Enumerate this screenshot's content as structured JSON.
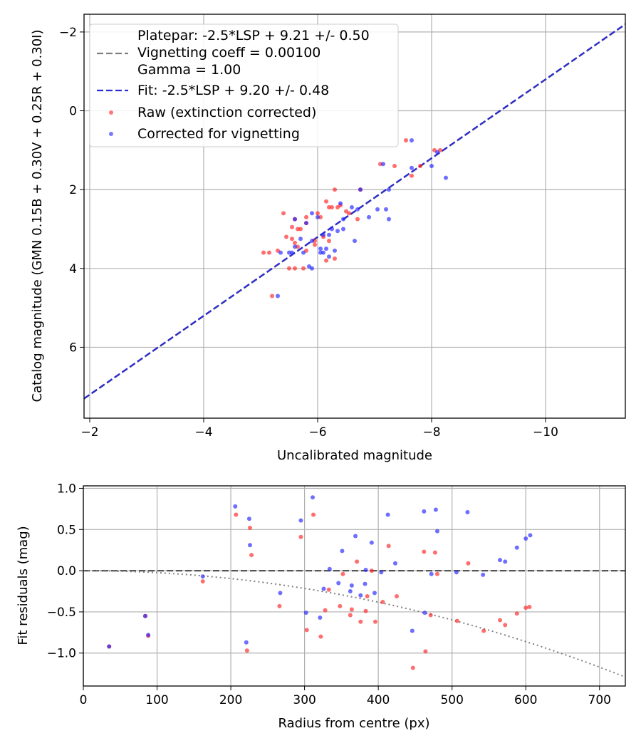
{
  "chart_data": [
    {
      "type": "scatter",
      "xlabel": "Uncalibrated magnitude",
      "ylabel": "Catalog magnitude (GMN 0.15B + 0.30V + 0.25R + 0.30I)",
      "xlim": [
        -1.9,
        -11.4
      ],
      "ylim": [
        7.8,
        -2.45
      ],
      "x_ticks": [
        -2,
        -4,
        -6,
        -8,
        -10
      ],
      "y_ticks": [
        -2,
        0,
        2,
        4,
        6
      ],
      "x_tick_labels": [
        "−2",
        "−4",
        "−6",
        "−8",
        "−10"
      ],
      "y_tick_labels": [
        "−2",
        "0",
        "2",
        "4",
        "6"
      ],
      "grid": true,
      "legend_position": "top-left",
      "legend": {
        "platepar_1": "Platepar: -2.5*LSP + 9.21 +/- 0.50",
        "platepar_2": "Vignetting coeff = 0.00100",
        "platepar_3": "Gamma = 1.00",
        "fit": "Fit: -2.5*LSP + 9.20 +/- 0.48",
        "raw": "Raw (extinction corrected)",
        "corrected": "Corrected for vignetting"
      },
      "lines": [
        {
          "name": "Platepar",
          "slope": 1,
          "intercept": 9.21,
          "color": "#7f7f7f",
          "style": "dashed"
        },
        {
          "name": "Fit",
          "slope": 1,
          "intercept": 9.2,
          "color": "#2a2ad4",
          "style": "dashed"
        }
      ],
      "series": [
        {
          "name": "Raw (extinction corrected)",
          "color": "#ff2020",
          "points": [
            [
              -5.2,
              4.7
            ],
            [
              -5.05,
              3.6
            ],
            [
              -5.15,
              3.6
            ],
            [
              -5.3,
              3.55
            ],
            [
              -5.45,
              3.2
            ],
            [
              -5.4,
              2.6
            ],
            [
              -5.55,
              2.95
            ],
            [
              -5.6,
              2.75
            ],
            [
              -5.65,
              3.0
            ],
            [
              -5.7,
              3.0
            ],
            [
              -5.55,
              3.25
            ],
            [
              -5.6,
              3.35
            ],
            [
              -5.65,
              3.45
            ],
            [
              -5.5,
              4.0
            ],
            [
              -5.6,
              4.0
            ],
            [
              -5.75,
              4.0
            ],
            [
              -5.8,
              3.55
            ],
            [
              -5.8,
              2.7
            ],
            [
              -5.8,
              2.85
            ],
            [
              -5.95,
              3.3
            ],
            [
              -5.95,
              3.4
            ],
            [
              -6.0,
              2.6
            ],
            [
              -6.05,
              2.7
            ],
            [
              -6.1,
              3.2
            ],
            [
              -6.15,
              2.3
            ],
            [
              -6.2,
              3.3
            ],
            [
              -6.2,
              2.45
            ],
            [
              -6.25,
              2.45
            ],
            [
              -6.3,
              2.0
            ],
            [
              -6.35,
              2.45
            ],
            [
              -6.4,
              2.4
            ],
            [
              -6.15,
              3.8
            ],
            [
              -6.3,
              3.75
            ],
            [
              -6.5,
              2.55
            ],
            [
              -6.55,
              2.6
            ],
            [
              -6.7,
              2.75
            ],
            [
              -6.75,
              2.0
            ],
            [
              -7.1,
              1.35
            ],
            [
              -7.35,
              1.4
            ],
            [
              -7.55,
              0.75
            ],
            [
              -7.65,
              1.65
            ],
            [
              -7.8,
              1.4
            ],
            [
              -8.05,
              1.0
            ],
            [
              -8.15,
              1.0
            ]
          ]
        },
        {
          "name": "Corrected for vignetting",
          "color": "#2020ff",
          "points": [
            [
              -5.3,
              4.7
            ],
            [
              -5.35,
              3.6
            ],
            [
              -5.5,
              3.6
            ],
            [
              -5.55,
              3.6
            ],
            [
              -5.6,
              3.45
            ],
            [
              -5.6,
              2.75
            ],
            [
              -5.7,
              3.25
            ],
            [
              -5.75,
              3.6
            ],
            [
              -5.8,
              2.85
            ],
            [
              -5.85,
              3.95
            ],
            [
              -5.9,
              4.0
            ],
            [
              -5.9,
              3.3
            ],
            [
              -5.9,
              2.6
            ],
            [
              -6.0,
              2.7
            ],
            [
              -6.05,
              3.5
            ],
            [
              -6.05,
              3.6
            ],
            [
              -6.1,
              3.15
            ],
            [
              -6.1,
              3.6
            ],
            [
              -6.15,
              3.5
            ],
            [
              -6.2,
              3.15
            ],
            [
              -6.2,
              3.7
            ],
            [
              -6.25,
              3.0
            ],
            [
              -6.3,
              3.55
            ],
            [
              -6.35,
              3.05
            ],
            [
              -6.4,
              2.35
            ],
            [
              -6.45,
              2.75
            ],
            [
              -6.45,
              3.0
            ],
            [
              -6.6,
              2.45
            ],
            [
              -6.65,
              3.3
            ],
            [
              -6.7,
              2.5
            ],
            [
              -6.75,
              2.0
            ],
            [
              -6.9,
              2.7
            ],
            [
              -7.05,
              2.5
            ],
            [
              -7.15,
              1.35
            ],
            [
              -7.2,
              2.5
            ],
            [
              -7.25,
              2.75
            ],
            [
              -7.25,
              2.0
            ],
            [
              -7.65,
              0.75
            ],
            [
              -7.65,
              1.45
            ],
            [
              -8.0,
              1.4
            ],
            [
              -8.1,
              1.05
            ],
            [
              -8.25,
              1.7
            ]
          ]
        }
      ]
    },
    {
      "type": "scatter",
      "xlabel": "Radius from centre (px)",
      "ylabel": "Fit residuals (mag)",
      "xlim": [
        0,
        735
      ],
      "ylim": [
        -1.4,
        1.03
      ],
      "x_ticks": [
        0,
        100,
        200,
        300,
        400,
        500,
        600,
        700
      ],
      "y_ticks": [
        -1.0,
        -0.5,
        0.0,
        0.5,
        1.0
      ],
      "x_tick_labels": [
        "0",
        "100",
        "200",
        "300",
        "400",
        "500",
        "600",
        "700"
      ],
      "y_tick_labels": [
        "−1.0",
        "−0.5",
        "0.0",
        "0.5",
        "1.0"
      ],
      "grid": true,
      "lines": [
        {
          "name": "zero",
          "color": "#555555",
          "style": "dashed",
          "y": 0
        },
        {
          "name": "vignetting",
          "color": "#808080",
          "style": "dotted",
          "a": -2.39e-06
        }
      ],
      "series": [
        {
          "name": "Raw (extinction corrected)",
          "color": "#ff2020",
          "points": [
            [
              35,
              -0.92
            ],
            [
              84,
              -0.55
            ],
            [
              88,
              -0.79
            ],
            [
              162,
              -0.13
            ],
            [
              207,
              0.68
            ],
            [
              222,
              -0.97
            ],
            [
              226,
              0.52
            ],
            [
              228,
              0.19
            ],
            [
              266,
              -0.43
            ],
            [
              295,
              0.41
            ],
            [
              303,
              -0.72
            ],
            [
              312,
              0.68
            ],
            [
              322,
              -0.8
            ],
            [
              328,
              -0.48
            ],
            [
              333,
              -0.23
            ],
            [
              348,
              -0.43
            ],
            [
              352,
              -0.04
            ],
            [
              362,
              -0.54
            ],
            [
              364,
              -0.47
            ],
            [
              371,
              0.11
            ],
            [
              376,
              -0.62
            ],
            [
              383,
              -0.49
            ],
            [
              385,
              -0.31
            ],
            [
              391,
              0.0
            ],
            [
              396,
              -0.62
            ],
            [
              406,
              -0.38
            ],
            [
              414,
              0.3
            ],
            [
              425,
              -0.31
            ],
            [
              447,
              -1.18
            ],
            [
              462,
              0.23
            ],
            [
              464,
              -0.98
            ],
            [
              471,
              -0.54
            ],
            [
              477,
              0.22
            ],
            [
              480,
              -0.04
            ],
            [
              507,
              -0.61
            ],
            [
              522,
              0.09
            ],
            [
              543,
              -0.73
            ],
            [
              565,
              -0.6
            ],
            [
              572,
              -0.66
            ],
            [
              588,
              -0.52
            ],
            [
              600,
              -0.45
            ],
            [
              605,
              -0.44
            ]
          ]
        },
        {
          "name": "Corrected for vignetting",
          "color": "#2020ff",
          "points": [
            [
              35,
              -0.92
            ],
            [
              84,
              -0.55
            ],
            [
              88,
              -0.78
            ],
            [
              162,
              -0.07
            ],
            [
              206,
              0.78
            ],
            [
              221,
              -0.87
            ],
            [
              225,
              0.63
            ],
            [
              226,
              0.31
            ],
            [
              267,
              -0.27
            ],
            [
              295,
              0.61
            ],
            [
              302,
              -0.51
            ],
            [
              311,
              0.89
            ],
            [
              321,
              -0.57
            ],
            [
              326,
              -0.22
            ],
            [
              334,
              0.02
            ],
            [
              346,
              -0.15
            ],
            [
              351,
              0.24
            ],
            [
              362,
              -0.25
            ],
            [
              364,
              -0.18
            ],
            [
              369,
              0.42
            ],
            [
              376,
              -0.3
            ],
            [
              382,
              -0.16
            ],
            [
              383,
              0.01
            ],
            [
              391,
              0.34
            ],
            [
              395,
              -0.27
            ],
            [
              404,
              -0.02
            ],
            [
              413,
              0.68
            ],
            [
              423,
              0.09
            ],
            [
              446,
              -0.73
            ],
            [
              462,
              0.72
            ],
            [
              463,
              -0.51
            ],
            [
              472,
              -0.04
            ],
            [
              478,
              0.74
            ],
            [
              480,
              0.48
            ],
            [
              506,
              -0.02
            ],
            [
              521,
              0.71
            ],
            [
              542,
              -0.05
            ],
            [
              565,
              0.13
            ],
            [
              572,
              0.11
            ],
            [
              588,
              0.28
            ],
            [
              600,
              0.39
            ],
            [
              606,
              0.43
            ]
          ]
        }
      ]
    }
  ]
}
